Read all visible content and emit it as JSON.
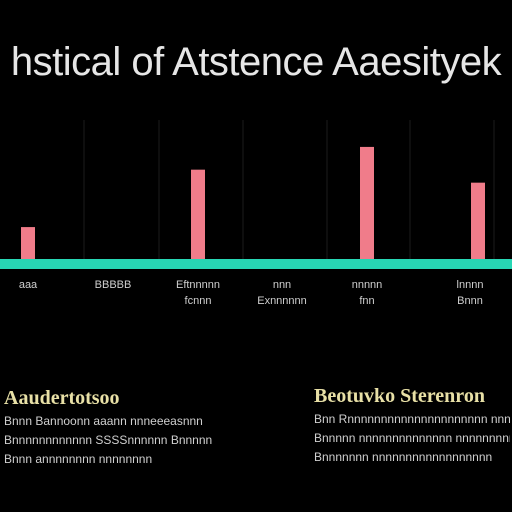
{
  "title": "hstical of Atstence Aaesityek",
  "chart_data": {
    "type": "bar",
    "categories": [
      "",
      "",
      "",
      "",
      "",
      ""
    ],
    "values": [
      35,
      88,
      0,
      109,
      76,
      0
    ],
    "ylim": [
      0,
      120
    ],
    "category_labels": [
      [
        "aaa",
        ""
      ],
      [
        "BBBBB",
        ""
      ],
      [
        "Eftnnnnn",
        "fcnnn"
      ],
      [
        "nnn",
        "Exnnnnnn"
      ],
      [
        "nnnnn",
        "fnn"
      ],
      [
        "lnnnn",
        "Bnnn"
      ]
    ],
    "colors": {
      "bar": "#f07c8a",
      "baseline": "#27d6b4"
    },
    "grid": true
  },
  "notes": [
    {
      "title": "Aaudertotsoo",
      "lines": [
        "Bnnn Bannoonn aaann nnneeeasnnn",
        "Bnnnnnnnnnnnn SSSSnnnnnn Bnnnnn",
        "Bnnn annnnnnnn nnnnnnnn"
      ]
    },
    {
      "title": "Beotuvko Sterenron",
      "lines": [
        "Bnn Rnnnnnnnnnnnnnnnnnnnnn nnn",
        "Bnnnnn nnnnnnnnnnnnnn nnnnnnnnn",
        "Bnnnnnnn nnnnnnnnnnnnnnnnnn"
      ]
    }
  ]
}
